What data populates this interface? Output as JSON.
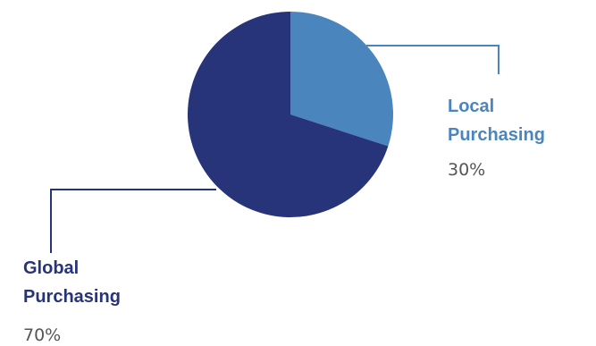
{
  "chart_data": {
    "type": "pie",
    "title": "",
    "slices": [
      {
        "label_line1": "Local",
        "label_line2": "Purchasing",
        "value": 30,
        "value_label": "30%",
        "color": "#4a85bd"
      },
      {
        "label_line1": "Global",
        "label_line2": "Purchasing",
        "value": 70,
        "value_label": "70%",
        "color": "#283479"
      }
    ],
    "legend": "none",
    "label_style": "callout lines"
  }
}
